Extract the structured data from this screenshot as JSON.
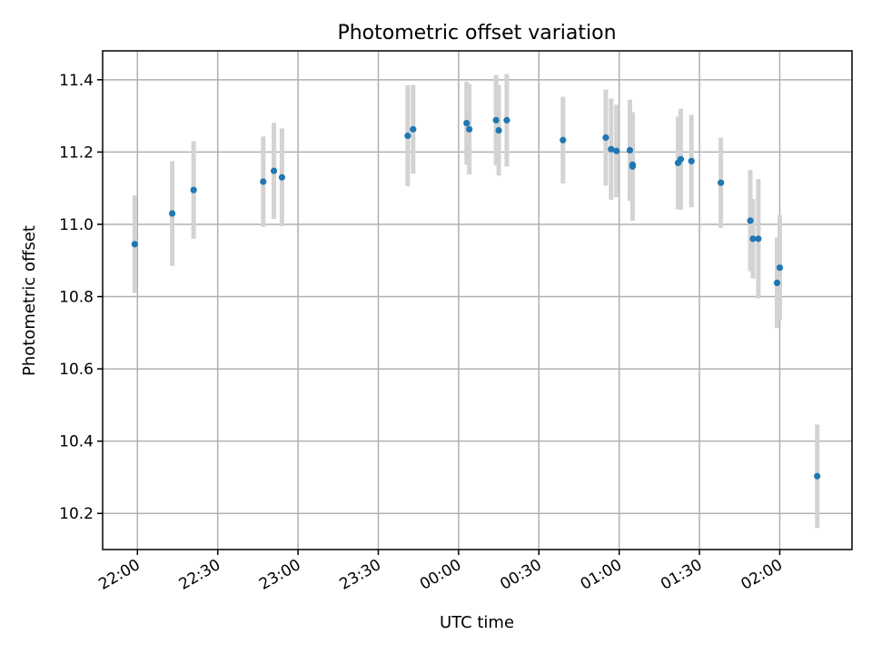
{
  "chart_data": {
    "type": "scatter",
    "title": "Photometric offset variation",
    "xlabel": "UTC time",
    "ylabel": "Photometric offset",
    "xlim": [
      "21:47",
      "02:27"
    ],
    "ylim": [
      10.1,
      11.48
    ],
    "x_ticks": [
      "22:00",
      "22:30",
      "23:00",
      "23:30",
      "00:00",
      "00:30",
      "01:00",
      "01:30",
      "02:00"
    ],
    "y_ticks": [
      10.2,
      10.4,
      10.6,
      10.8,
      11.0,
      11.2,
      11.4
    ],
    "grid": true,
    "marker_color": "#1f77b4",
    "errorbar_color": "#d3d3d3",
    "points": [
      {
        "time": "21:59",
        "y": 10.945,
        "yerr": 0.135
      },
      {
        "time": "22:13",
        "y": 11.03,
        "yerr": 0.145
      },
      {
        "time": "22:21",
        "y": 11.095,
        "yerr": 0.135
      },
      {
        "time": "22:47",
        "y": 11.118,
        "yerr": 0.125
      },
      {
        "time": "22:51",
        "y": 11.148,
        "yerr": 0.133
      },
      {
        "time": "22:54",
        "y": 11.13,
        "yerr": 0.135
      },
      {
        "time": "23:41",
        "y": 11.245,
        "yerr": 0.14
      },
      {
        "time": "23:43",
        "y": 11.263,
        "yerr": 0.123
      },
      {
        "time": "00:03",
        "y": 11.28,
        "yerr": 0.115
      },
      {
        "time": "00:04",
        "y": 11.263,
        "yerr": 0.125
      },
      {
        "time": "00:14",
        "y": 11.288,
        "yerr": 0.125
      },
      {
        "time": "00:15",
        "y": 11.26,
        "yerr": 0.125
      },
      {
        "time": "00:18",
        "y": 11.288,
        "yerr": 0.128
      },
      {
        "time": "00:39",
        "y": 11.233,
        "yerr": 0.12
      },
      {
        "time": "00:55",
        "y": 11.24,
        "yerr": 0.133
      },
      {
        "time": "00:57",
        "y": 11.208,
        "yerr": 0.14
      },
      {
        "time": "00:59",
        "y": 11.203,
        "yerr": 0.128
      },
      {
        "time": "01:04",
        "y": 11.205,
        "yerr": 0.14
      },
      {
        "time": "01:05",
        "y": 11.165,
        "yerr": 0.145
      },
      {
        "time": "01:05",
        "y": 11.16,
        "yerr": 0.15
      },
      {
        "time": "01:22",
        "y": 11.17,
        "yerr": 0.128
      },
      {
        "time": "01:23",
        "y": 11.18,
        "yerr": 0.14
      },
      {
        "time": "01:27",
        "y": 11.175,
        "yerr": 0.128
      },
      {
        "time": "01:38",
        "y": 11.115,
        "yerr": 0.125
      },
      {
        "time": "01:49",
        "y": 11.01,
        "yerr": 0.14
      },
      {
        "time": "01:50",
        "y": 10.96,
        "yerr": 0.11
      },
      {
        "time": "01:52",
        "y": 10.96,
        "yerr": 0.165
      },
      {
        "time": "01:59",
        "y": 10.838,
        "yerr": 0.125
      },
      {
        "time": "02:00",
        "y": 10.88,
        "yerr": 0.145
      },
      {
        "time": "02:14",
        "y": 10.303,
        "yerr": 0.143
      }
    ]
  }
}
